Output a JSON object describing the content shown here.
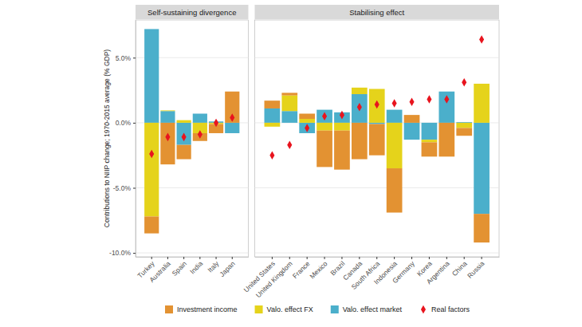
{
  "chart_data": {
    "type": "bar",
    "stacked": true,
    "grid": true,
    "legend": "bottom",
    "y_label": "Contributions to NIIP change; 1970-2015 average (% GDP)",
    "ylim": [
      -10.3,
      7.9
    ],
    "yticks": [
      {
        "value": -10,
        "label": "-10.0%"
      },
      {
        "value": -5,
        "label": "-5.0%"
      },
      {
        "value": 0,
        "label": "0.0%"
      },
      {
        "value": 5,
        "label": "5.0%"
      }
    ],
    "panels": [
      {
        "title": "Self-sustaining divergence",
        "categories": [
          "Turkey",
          "Australia",
          "Spain",
          "India",
          "Italy",
          "Japan"
        ]
      },
      {
        "title": "Stabilising effect",
        "categories": [
          "United States",
          "United Kingdom",
          "France",
          "Mexico",
          "Brazil",
          "Canada",
          "South Africa",
          "Indonesia",
          "Germany",
          "Korea",
          "Argentina",
          "China",
          "Russia"
        ]
      }
    ],
    "series": [
      {
        "name": "Investment income",
        "color": "#E39232",
        "values": [
          -1.3,
          -3.2,
          -1.1,
          -0.6,
          -0.7,
          2.4,
          0.6,
          0.2,
          0.4,
          -2.8,
          -3.0,
          -2.8,
          -2.4,
          -3.4,
          0.6,
          -1.1,
          -2.6,
          -0.6,
          -2.2
        ]
      },
      {
        "name": "Valo. effect FX",
        "color": "#E5D31B",
        "values": [
          -7.2,
          0.05,
          0.2,
          -0.8,
          -0.1,
          0.0,
          -0.3,
          1.2,
          0.3,
          -0.6,
          -0.6,
          0.5,
          2.6,
          -3.5,
          0.0,
          -0.2,
          0.0,
          -0.4,
          3.0
        ]
      },
      {
        "name": "Valo. effect market",
        "color": "#4BAFCB",
        "values": [
          7.2,
          0.9,
          -1.7,
          0.7,
          0.1,
          -0.8,
          1.1,
          0.9,
          -0.8,
          1.0,
          0.8,
          2.2,
          -0.1,
          1.0,
          -1.3,
          -1.3,
          2.4,
          0.05,
          -7.0
        ]
      },
      {
        "name": "Real factors",
        "type": "scatter",
        "marker": "diamond",
        "color": "#E8141E",
        "values": [
          -2.4,
          -1.1,
          -1.1,
          -0.9,
          0.0,
          0.4,
          -2.5,
          -1.7,
          -0.4,
          0.5,
          0.6,
          1.2,
          1.4,
          1.5,
          1.6,
          1.8,
          1.8,
          3.1,
          6.4
        ]
      }
    ]
  }
}
